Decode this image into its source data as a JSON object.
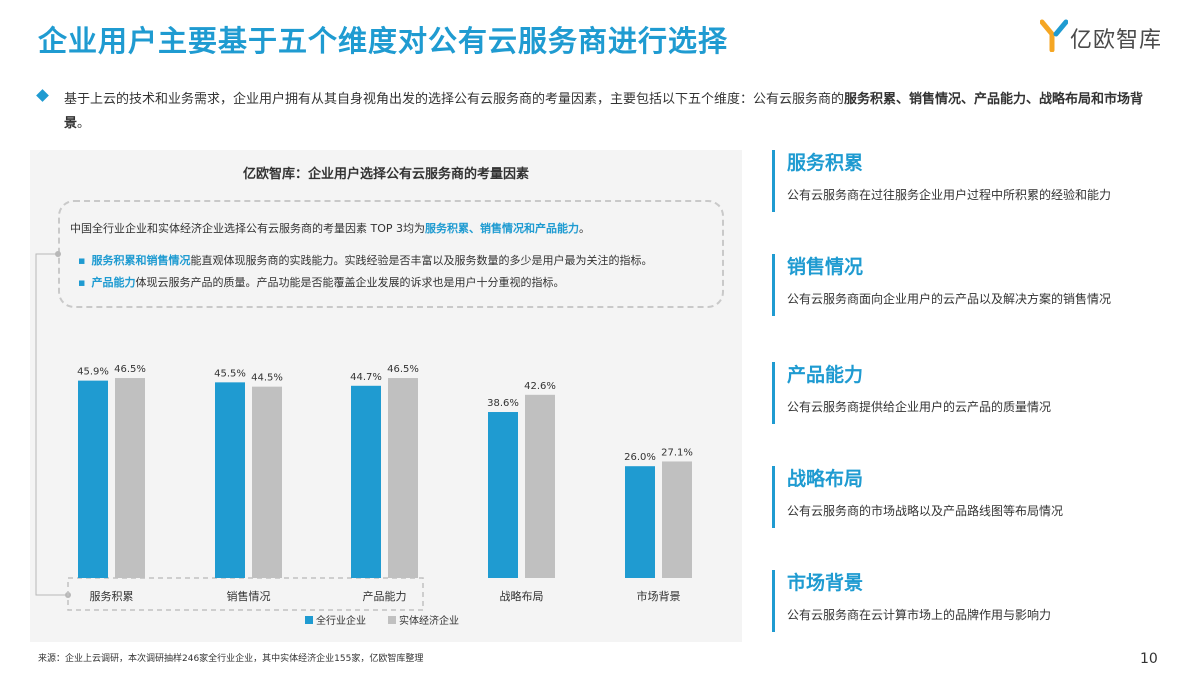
{
  "header": {
    "title": "企业用户主要基于五个维度对公有云服务商进行选择",
    "logo_text": "亿欧智库"
  },
  "intro": {
    "text_plain": "基于上云的技术和业务需求，企业用户拥有从其自身视角出发的选择公有云服务商的考量因素，主要包括以下五个维度：公有云服务商的",
    "text_bold": "服务积累、销售情况、产品能力、战略布局和市场背景",
    "text_end": "。"
  },
  "chart_panel": {
    "title": "亿欧智库：企业用户选择公有云服务商的考量因素",
    "callout_line1_plain": "中国全行业企业和实体经济企业选择公有云服务商的考量因素 TOP 3均为",
    "callout_line1_hl": "服务积累、销售情况和产品能力",
    "callout_line1_end": "。",
    "callout_sub1_hl": "服务积累和销售情况",
    "callout_sub1_plain": "能直观体现服务商的实践能力。实践经验是否丰富以及服务数量的多少是用户最为关注的指标。",
    "callout_sub2_hl": "产品能力",
    "callout_sub2_plain": "体现云服务产品的质量。产品功能是否能覆盖企业发展的诉求也是用户十分重视的指标。",
    "bullet_dot": "▪"
  },
  "chart_data": {
    "type": "bar",
    "categories": [
      "服务积累",
      "销售情况",
      "产品能力",
      "战略布局",
      "市场背景"
    ],
    "series": [
      {
        "name": "全行业企业",
        "values": [
          45.9,
          45.5,
          44.7,
          38.6,
          26.0
        ],
        "color": "#1f9bd1"
      },
      {
        "name": "实体经济企业",
        "values": [
          46.5,
          44.5,
          46.5,
          42.6,
          27.1
        ],
        "color": "#c0c0c0"
      }
    ],
    "value_labels": [
      [
        "45.9%",
        "45.5%",
        "44.7%",
        "38.6%",
        "26.0%"
      ],
      [
        "46.5%",
        "44.5%",
        "46.5%",
        "42.6%",
        "27.1%"
      ]
    ],
    "unit": "%",
    "ylim": [
      0,
      50
    ],
    "grid": false,
    "legend_position": "bottom-center"
  },
  "dimensions": [
    {
      "title": "服务积累",
      "desc": "公有云服务商在过往服务企业用户过程中所积累的经验和能力"
    },
    {
      "title": "销售情况",
      "desc": "公有云服务商面向企业用户的云产品以及解决方案的销售情况"
    },
    {
      "title": "产品能力",
      "desc": "公有云服务商提供给企业用户的云产品的质量情况"
    },
    {
      "title": "战略布局",
      "desc": "公有云服务商的市场战略以及产品路线图等布局情况"
    },
    {
      "title": "市场背景",
      "desc": "公有云服务商在云计算市场上的品牌作用与影响力"
    }
  ],
  "footer": {
    "source": "来源：企业上云调研，本次调研抽样246家全行业企业，其中实体经济企业155家，亿欧智库整理",
    "page_number": "10"
  },
  "colors": {
    "accent": "#1f9bd1",
    "secondary": "#c0c0c0",
    "logo_orange": "#f5a623"
  }
}
